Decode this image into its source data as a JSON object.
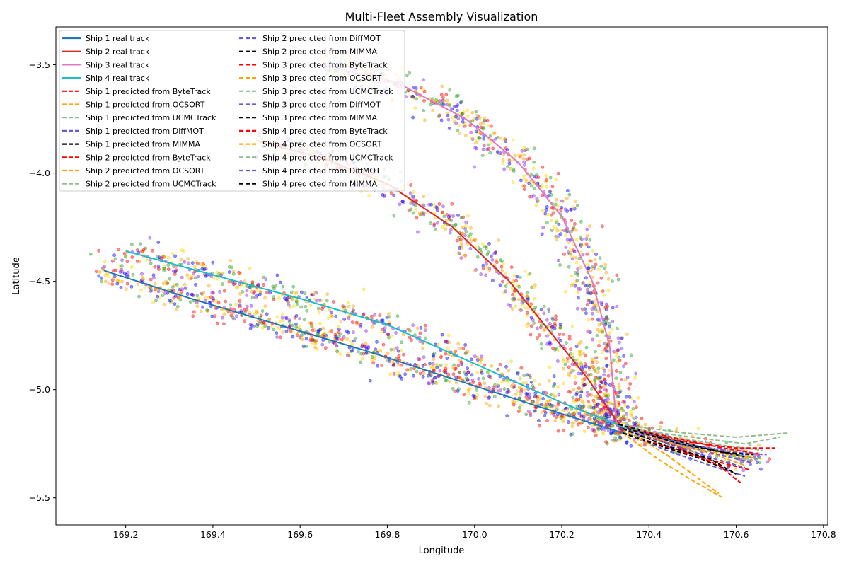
{
  "chart_data": {
    "type": "line",
    "title": "Multi-Fleet Assembly Visualization",
    "xlabel": "Longitude",
    "ylabel": "Latitude",
    "xlim": [
      169.04,
      170.81
    ],
    "ylim": [
      -5.625,
      -3.325
    ],
    "xticks": [
      169.2,
      169.4,
      169.6,
      169.8,
      170.0,
      170.2,
      170.4,
      170.6,
      170.8
    ],
    "yticks": [
      -3.5,
      -4.0,
      -4.5,
      -5.0,
      -5.5
    ],
    "xtick_labels": [
      "169.2",
      "169.4",
      "169.6",
      "169.8",
      "170.0",
      "170.2",
      "170.4",
      "170.6",
      "170.8"
    ],
    "ytick_labels": [
      "−3.5",
      "−4.0",
      "−4.5",
      "−5.0",
      "−5.5"
    ],
    "grid": false,
    "legend": {
      "placement": "top-left",
      "columns": 2
    },
    "real_tracks": [
      {
        "name": "Ship 1 real track",
        "color": "#1f77b4",
        "x": [
          169.15,
          169.35,
          169.55,
          169.75,
          169.95,
          170.15,
          170.34
        ],
        "y": [
          -4.45,
          -4.58,
          -4.7,
          -4.82,
          -4.95,
          -5.08,
          -5.2
        ]
      },
      {
        "name": "Ship 2 real track",
        "color": "#d62728",
        "x": [
          169.5,
          169.65,
          169.8,
          169.95,
          170.08,
          170.18,
          170.26,
          170.31,
          170.34
        ],
        "y": [
          -3.85,
          -3.93,
          -4.05,
          -4.25,
          -4.5,
          -4.75,
          -4.95,
          -5.1,
          -5.18
        ]
      },
      {
        "name": "Ship 3 real track",
        "color": "#e377c2",
        "x": [
          169.65,
          169.82,
          169.98,
          170.1,
          170.2,
          170.27,
          170.31,
          170.325
        ],
        "y": [
          -3.5,
          -3.58,
          -3.75,
          -3.95,
          -4.2,
          -4.5,
          -4.8,
          -5.15
        ]
      },
      {
        "name": "Ship 4 real track",
        "color": "#17becf",
        "x": [
          169.2,
          169.4,
          169.6,
          169.8,
          170.0,
          170.2,
          170.35,
          170.5,
          170.65
        ],
        "y": [
          -4.36,
          -4.47,
          -4.58,
          -4.7,
          -4.88,
          -5.06,
          -5.18,
          -5.26,
          -5.32
        ]
      }
    ],
    "predicted_series": [
      {
        "name": "Ship 1 predicted from ByteTrack",
        "color": "#ff0000",
        "x": [
          170.34,
          170.45,
          170.55,
          170.63
        ],
        "y": [
          -5.2,
          -5.27,
          -5.33,
          -5.37
        ]
      },
      {
        "name": "Ship 1 predicted from OCSORT",
        "color": "#ffa500",
        "x": [
          170.34,
          170.42,
          170.5,
          170.57
        ],
        "y": [
          -5.2,
          -5.32,
          -5.42,
          -5.5
        ]
      },
      {
        "name": "Ship 1 predicted from UCMCTrack",
        "color": "#8fbc8f",
        "x": [
          170.34,
          170.45,
          170.56,
          170.64
        ],
        "y": [
          -5.2,
          -5.25,
          -5.3,
          -5.33
        ]
      },
      {
        "name": "Ship 1 predicted from DiffMOT",
        "color": "#6a5acd",
        "x": [
          170.34,
          170.44,
          170.54,
          170.62
        ],
        "y": [
          -5.2,
          -5.28,
          -5.35,
          -5.4
        ]
      },
      {
        "name": "Ship 1 predicted from MIMMA",
        "color": "#000000",
        "x": [
          170.34,
          170.44,
          170.52,
          170.58
        ],
        "y": [
          -5.2,
          -5.27,
          -5.32,
          -5.37
        ]
      },
      {
        "name": "Ship 2 predicted from ByteTrack",
        "color": "#ff0000",
        "x": [
          170.34,
          170.46,
          170.56,
          170.61
        ],
        "y": [
          -5.18,
          -5.26,
          -5.35,
          -5.43
        ]
      },
      {
        "name": "Ship 2 predicted from OCSORT",
        "color": "#ffa500",
        "x": [
          170.34,
          170.44,
          170.52,
          170.56
        ],
        "y": [
          -5.18,
          -5.3,
          -5.42,
          -5.48
        ]
      },
      {
        "name": "Ship 2 predicted from UCMCTrack",
        "color": "#8fbc8f",
        "x": [
          170.34,
          170.46,
          170.58,
          170.66
        ],
        "y": [
          -5.18,
          -5.22,
          -5.26,
          -5.28
        ]
      },
      {
        "name": "Ship 2 predicted from DiffMOT",
        "color": "#6a5acd",
        "x": [
          170.34,
          170.45,
          170.55,
          170.62
        ],
        "y": [
          -5.18,
          -5.25,
          -5.32,
          -5.36
        ]
      },
      {
        "name": "Ship 2 predicted from MIMMA",
        "color": "#000000",
        "x": [
          170.34,
          170.44,
          170.54,
          170.6
        ],
        "y": [
          -5.18,
          -5.26,
          -5.32,
          -5.39
        ]
      },
      {
        "name": "Ship 3 predicted from ByteTrack",
        "color": "#ff0000",
        "x": [
          170.33,
          170.45,
          170.57,
          170.66
        ],
        "y": [
          -5.16,
          -5.22,
          -5.27,
          -5.3
        ]
      },
      {
        "name": "Ship 3 predicted from OCSORT",
        "color": "#ffa500",
        "x": [
          170.33,
          170.45,
          170.55,
          170.62
        ],
        "y": [
          -5.16,
          -5.24,
          -5.3,
          -5.35
        ]
      },
      {
        "name": "Ship 3 predicted from UCMCTrack",
        "color": "#8fbc8f",
        "x": [
          170.33,
          170.48,
          170.6,
          170.72
        ],
        "y": [
          -5.16,
          -5.2,
          -5.22,
          -5.2
        ]
      },
      {
        "name": "Ship 3 predicted from DiffMOT",
        "color": "#6a5acd",
        "x": [
          170.33,
          170.45,
          170.56,
          170.64
        ],
        "y": [
          -5.16,
          -5.24,
          -5.3,
          -5.34
        ]
      },
      {
        "name": "Ship 3 predicted from MIMMA",
        "color": "#000000",
        "x": [
          170.33,
          170.45,
          170.55,
          170.62
        ],
        "y": [
          -5.16,
          -5.23,
          -5.28,
          -5.31
        ]
      },
      {
        "name": "Ship 4 predicted from ByteTrack",
        "color": "#ff0000",
        "x": [
          170.35,
          170.48,
          170.6,
          170.69
        ],
        "y": [
          -5.18,
          -5.24,
          -5.27,
          -5.27
        ]
      },
      {
        "name": "Ship 4 predicted from OCSORT",
        "color": "#ffa500",
        "x": [
          170.35,
          170.47,
          170.58,
          170.66
        ],
        "y": [
          -5.18,
          -5.26,
          -5.3,
          -5.32
        ]
      },
      {
        "name": "Ship 4 predicted from UCMCTrack",
        "color": "#8fbc8f",
        "x": [
          170.35,
          170.5,
          170.62,
          170.7
        ],
        "y": [
          -5.18,
          -5.22,
          -5.25,
          -5.22
        ]
      },
      {
        "name": "Ship 4 predicted from DiffMOT",
        "color": "#6a5acd",
        "x": [
          170.35,
          170.48,
          170.6,
          170.67
        ],
        "y": [
          -5.18,
          -5.25,
          -5.29,
          -5.3
        ]
      },
      {
        "name": "Ship 4 predicted from MIMMA",
        "color": "#000000",
        "x": [
          170.35,
          170.47,
          170.57,
          170.64
        ],
        "y": [
          -5.18,
          -5.25,
          -5.29,
          -5.3
        ]
      }
    ],
    "scatter_colors": [
      "#ff0000",
      "#ffa500",
      "#ffd700",
      "#0000ff",
      "#2ca02c",
      "#8a2be2"
    ]
  }
}
